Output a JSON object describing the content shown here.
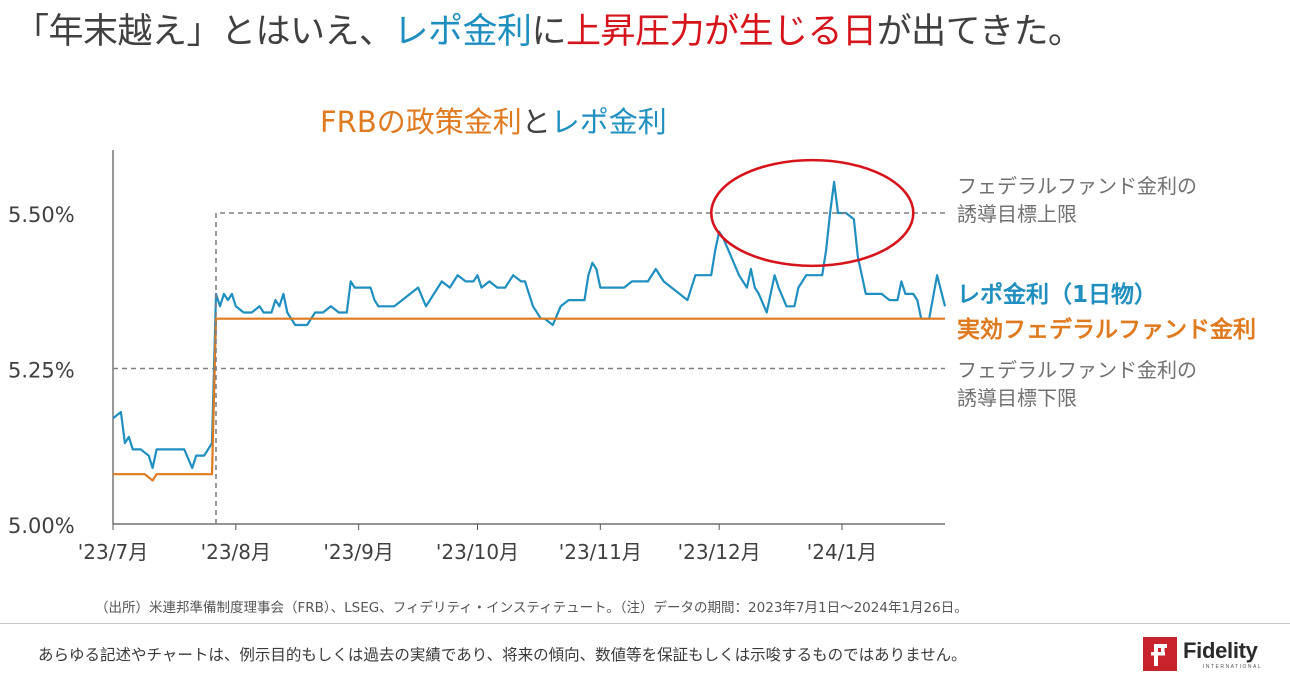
{
  "headline": {
    "part1": "「年末越え」とはいえ、",
    "part2": "レポ金利",
    "part3": "に",
    "part4": "上昇圧力が生じる日",
    "part5": "が出てきた。"
  },
  "chart_title": {
    "part1": "FRBの政策金利",
    "part2": "と",
    "part3": "レポ金利"
  },
  "chart_data": {
    "type": "line",
    "x_unit": "days since 2023-07-01",
    "xlim": [
      0,
      210
    ],
    "ylim": [
      5.0,
      5.6
    ],
    "x_tick_labels": [
      {
        "label": "'23/7月",
        "x": 0
      },
      {
        "label": "'23/8月",
        "x": 31
      },
      {
        "label": "'23/9月",
        "x": 62
      },
      {
        "label": "'23/10月",
        "x": 92
      },
      {
        "label": "'23/11月",
        "x": 123
      },
      {
        "label": "'23/12月",
        "x": 153
      },
      {
        "label": "'24/1月",
        "x": 184
      }
    ],
    "y_ticks": [
      {
        "value": 5.0,
        "label": "5.00%"
      },
      {
        "value": 5.25,
        "label": "5.25%"
      },
      {
        "value": 5.5,
        "label": "5.50%"
      }
    ],
    "series": [
      {
        "name": "レポ金利（1日物）",
        "color": "#1f8fc0",
        "points": [
          [
            0,
            5.17
          ],
          [
            2,
            5.18
          ],
          [
            3,
            5.13
          ],
          [
            4,
            5.14
          ],
          [
            5,
            5.12
          ],
          [
            7,
            5.12
          ],
          [
            9,
            5.11
          ],
          [
            10,
            5.09
          ],
          [
            11,
            5.12
          ],
          [
            14,
            5.12
          ],
          [
            16,
            5.12
          ],
          [
            18,
            5.12
          ],
          [
            20,
            5.09
          ],
          [
            21,
            5.11
          ],
          [
            23,
            5.11
          ],
          [
            24,
            5.12
          ],
          [
            25,
            5.13
          ],
          [
            26,
            5.37
          ],
          [
            27,
            5.35
          ],
          [
            28,
            5.37
          ],
          [
            29,
            5.36
          ],
          [
            30,
            5.37
          ],
          [
            31,
            5.35
          ],
          [
            33,
            5.34
          ],
          [
            35,
            5.34
          ],
          [
            37,
            5.35
          ],
          [
            38,
            5.34
          ],
          [
            40,
            5.34
          ],
          [
            41,
            5.36
          ],
          [
            42,
            5.35
          ],
          [
            43,
            5.37
          ],
          [
            44,
            5.34
          ],
          [
            46,
            5.32
          ],
          [
            49,
            5.32
          ],
          [
            51,
            5.34
          ],
          [
            53,
            5.34
          ],
          [
            55,
            5.35
          ],
          [
            57,
            5.34
          ],
          [
            59,
            5.34
          ],
          [
            60,
            5.39
          ],
          [
            61,
            5.38
          ],
          [
            63,
            5.38
          ],
          [
            65,
            5.38
          ],
          [
            66,
            5.36
          ],
          [
            67,
            5.35
          ],
          [
            69,
            5.35
          ],
          [
            71,
            5.35
          ],
          [
            73,
            5.36
          ],
          [
            75,
            5.37
          ],
          [
            77,
            5.38
          ],
          [
            79,
            5.35
          ],
          [
            81,
            5.37
          ],
          [
            83,
            5.39
          ],
          [
            85,
            5.38
          ],
          [
            87,
            5.4
          ],
          [
            89,
            5.39
          ],
          [
            91,
            5.39
          ],
          [
            92,
            5.4
          ],
          [
            93,
            5.38
          ],
          [
            95,
            5.39
          ],
          [
            97,
            5.38
          ],
          [
            99,
            5.38
          ],
          [
            101,
            5.4
          ],
          [
            103,
            5.39
          ],
          [
            104,
            5.39
          ],
          [
            106,
            5.35
          ],
          [
            108,
            5.33
          ],
          [
            109,
            5.33
          ],
          [
            111,
            5.32
          ],
          [
            113,
            5.35
          ],
          [
            115,
            5.36
          ],
          [
            117,
            5.36
          ],
          [
            119,
            5.36
          ],
          [
            120,
            5.4
          ],
          [
            121,
            5.42
          ],
          [
            122,
            5.41
          ],
          [
            123,
            5.38
          ],
          [
            125,
            5.38
          ],
          [
            127,
            5.38
          ],
          [
            129,
            5.38
          ],
          [
            131,
            5.39
          ],
          [
            133,
            5.39
          ],
          [
            135,
            5.39
          ],
          [
            137,
            5.41
          ],
          [
            139,
            5.39
          ],
          [
            141,
            5.38
          ],
          [
            143,
            5.37
          ],
          [
            145,
            5.36
          ],
          [
            147,
            5.4
          ],
          [
            149,
            5.4
          ],
          [
            151,
            5.4
          ],
          [
            152,
            5.44
          ],
          [
            153,
            5.47
          ],
          [
            154,
            5.46
          ],
          [
            156,
            5.43
          ],
          [
            158,
            5.4
          ],
          [
            160,
            5.38
          ],
          [
            161,
            5.41
          ],
          [
            162,
            5.38
          ],
          [
            163,
            5.37
          ],
          [
            165,
            5.34
          ],
          [
            167,
            5.4
          ],
          [
            168,
            5.38
          ],
          [
            170,
            5.35
          ],
          [
            172,
            5.35
          ],
          [
            173,
            5.38
          ],
          [
            175,
            5.4
          ],
          [
            177,
            5.4
          ],
          [
            179,
            5.4
          ],
          [
            180,
            5.44
          ],
          [
            181,
            5.5
          ],
          [
            182,
            5.55
          ],
          [
            183,
            5.5
          ],
          [
            185,
            5.5
          ],
          [
            187,
            5.49
          ],
          [
            188,
            5.43
          ],
          [
            189,
            5.4
          ],
          [
            190,
            5.37
          ],
          [
            192,
            5.37
          ],
          [
            194,
            5.37
          ],
          [
            196,
            5.36
          ],
          [
            198,
            5.36
          ],
          [
            199,
            5.39
          ],
          [
            200,
            5.37
          ],
          [
            202,
            5.37
          ],
          [
            203,
            5.36
          ],
          [
            204,
            5.33
          ],
          [
            206,
            5.33
          ],
          [
            208,
            5.4
          ],
          [
            210,
            5.35
          ]
        ]
      },
      {
        "name": "実効フェデラルファンド金利",
        "color": "#e07a1f",
        "points": [
          [
            0,
            5.08
          ],
          [
            8,
            5.08
          ],
          [
            9,
            5.075
          ],
          [
            10,
            5.07
          ],
          [
            11,
            5.08
          ],
          [
            25,
            5.08
          ],
          [
            26,
            5.33
          ],
          [
            210,
            5.33
          ]
        ]
      },
      {
        "name": "フェデラルファンド金利の誘導目標上限",
        "color": "#808080",
        "style": "dashed",
        "points": [
          [
            26,
            5.0
          ],
          [
            26,
            5.5
          ],
          [
            210,
            5.5
          ]
        ]
      },
      {
        "name": "フェデラルファンド金利の誘導目標下限",
        "color": "#808080",
        "style": "dashed",
        "points": [
          [
            0,
            5.25
          ],
          [
            210,
            5.25
          ]
        ]
      }
    ],
    "annotations": [
      {
        "type": "ellipse",
        "color": "#d6141b",
        "center": [
          176.5,
          5.5
        ],
        "rx_days": 25.5,
        "ry_rate": 0.085
      }
    ],
    "legend_labels": {
      "upper_target_line1": "フェデラルファンド金利の",
      "upper_target_line2": "誘導目標上限",
      "repo": "レポ金利（1日物）",
      "effr": "実効フェデラルファンド金利",
      "lower_target_line1": "フェデラルファンド金利の",
      "lower_target_line2": "誘導目標下限"
    }
  },
  "source_note": "（出所）米連邦準備制度理事会（FRB）、LSEG、フィデリティ・インスティテュート。（注）データの期間：2023年7月1日～2024年1月26日。",
  "disclaimer": "あらゆる記述やチャートは、例示目的もしくは過去の実績であり、将来の傾向、数値等を保証もしくは示唆するものではありません。",
  "logo": {
    "word": "Fidelity",
    "sub": "INTERNATIONAL",
    "color": "#c8232c"
  }
}
